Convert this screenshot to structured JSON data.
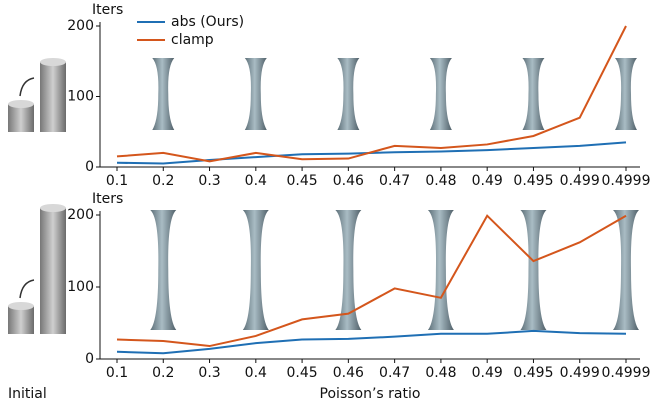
{
  "chart_data": [
    {
      "type": "line",
      "y_label": "Iters",
      "categories": [
        "0.1",
        "0.2",
        "0.3",
        "0.4",
        "0.45",
        "0.46",
        "0.47",
        "0.48",
        "0.49",
        "0.495",
        "0.499",
        "0.4999"
      ],
      "series": [
        {
          "name": "abs (Ours)",
          "color": "#1f6fb4",
          "values": [
            6,
            5,
            10,
            14,
            18,
            19,
            21,
            22,
            24,
            27,
            30,
            35
          ]
        },
        {
          "name": "clamp",
          "color": "#d4561c",
          "values": [
            15,
            20,
            8,
            20,
            11,
            12,
            30,
            27,
            32,
            44,
            70,
            200
          ]
        }
      ],
      "ylim": [
        0,
        200
      ],
      "yticks": [
        0,
        100,
        200
      ],
      "legend": "top-left"
    },
    {
      "type": "line",
      "y_label": "Iters",
      "x_label": "Poisson’s ratio",
      "categories": [
        "0.1",
        "0.2",
        "0.3",
        "0.4",
        "0.45",
        "0.46",
        "0.47",
        "0.48",
        "0.49",
        "0.495",
        "0.499",
        "0.4999"
      ],
      "series": [
        {
          "name": "abs (Ours)",
          "color": "#1f6fb4",
          "values": [
            10,
            8,
            14,
            22,
            27,
            28,
            31,
            35,
            35,
            39,
            36,
            35
          ]
        },
        {
          "name": "clamp",
          "color": "#d4561c",
          "values": [
            27,
            25,
            18,
            32,
            55,
            63,
            98,
            85,
            199,
            136,
            162,
            199
          ]
        }
      ],
      "ylim": [
        0,
        200
      ],
      "yticks": [
        0,
        100,
        200
      ]
    }
  ],
  "initial_label": "Initial"
}
